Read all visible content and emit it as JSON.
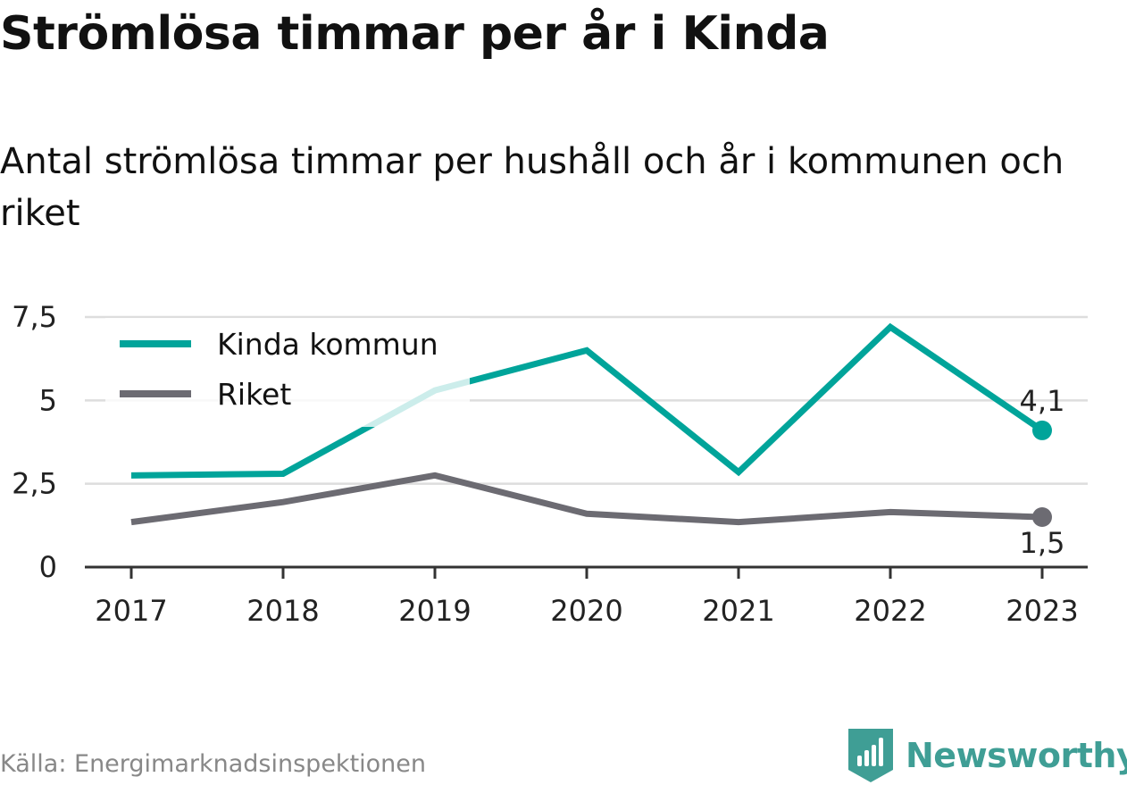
{
  "title": "Strömlösa timmar per år i Kinda",
  "subtitle": "Antal strömlösa timmar per hushåll och år i kommunen och riket",
  "source": "Källa: Energimarknadsinspektionen",
  "brand": {
    "name": "Newsworthy",
    "icon": "newsworthy-logo-icon"
  },
  "colors": {
    "kinda": "#00a49a",
    "riket": "#6c6b72",
    "grid": "#dddddd",
    "axis": "#333333"
  },
  "chart_data": {
    "type": "line",
    "title": "Strömlösa timmar per år i Kinda",
    "subtitle": "Antal strömlösa timmar per hushåll och år i kommunen och riket",
    "categories": [
      "2017",
      "2018",
      "2019",
      "2020",
      "2021",
      "2022",
      "2023"
    ],
    "series": [
      {
        "name": "Kinda kommun",
        "values": [
          2.75,
          2.8,
          5.3,
          6.5,
          2.85,
          7.2,
          4.1
        ],
        "color": "#00a49a",
        "end_label": "4,1"
      },
      {
        "name": "Riket",
        "values": [
          1.35,
          1.95,
          2.75,
          1.6,
          1.35,
          1.65,
          1.5
        ],
        "color": "#6c6b72",
        "end_label": "1,5"
      }
    ],
    "yticks": [
      0,
      2.5,
      5,
      7.5
    ],
    "ytick_labels": [
      "0",
      "2,5",
      "5",
      "7,5"
    ],
    "ylim": [
      0,
      7.5
    ],
    "grid": true,
    "legend": "top-left"
  }
}
